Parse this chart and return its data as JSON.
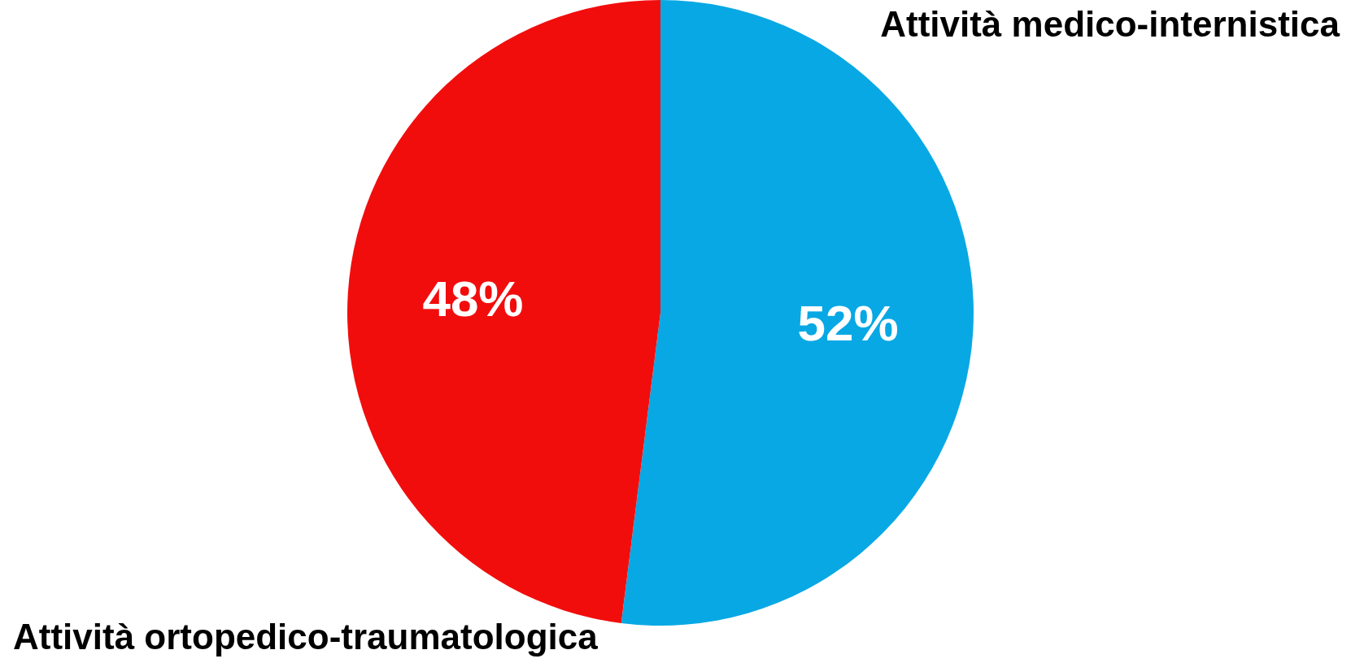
{
  "chart_data": {
    "type": "pie",
    "categories": [
      "Attività medico-internistica",
      "Attività ortopedico-traumatologica"
    ],
    "values": [
      52,
      48
    ],
    "colors": [
      "#08a8e4",
      "#f20d0d"
    ],
    "value_labels": [
      "52%",
      "48%"
    ]
  }
}
